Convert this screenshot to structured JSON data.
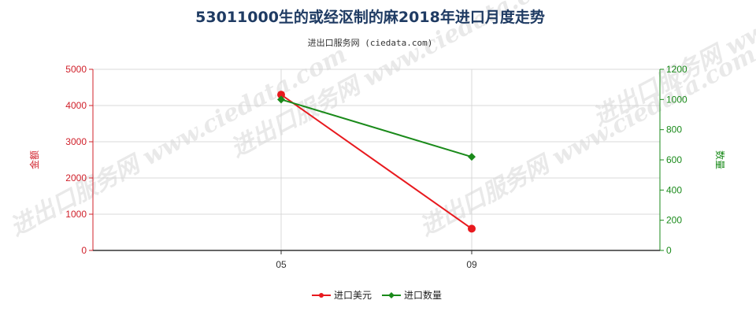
{
  "title": "53011000生的或经沤制的麻2018年进口月度走势",
  "subtitle": "进出口服务网 (ciedata.com)",
  "watermark_text": "进出口服务网 www.ciedata.com",
  "colors": {
    "left_axis": "#d0202a",
    "right_axis": "#1a8a1a",
    "grid": "#d8d8d8",
    "axis": "#333333"
  },
  "chart_data": {
    "type": "line",
    "categories": [
      "05",
      "09"
    ],
    "x_tick_labels": [
      "05",
      "09"
    ],
    "left_axis": {
      "label": "金额",
      "ylim": [
        0,
        5000
      ],
      "ticks": [
        0,
        1000,
        2000,
        3000,
        4000,
        5000
      ]
    },
    "right_axis": {
      "label": "数量",
      "ylim": [
        0,
        1200
      ],
      "ticks": [
        0,
        200,
        400,
        600,
        800,
        1000,
        1200
      ]
    },
    "series": [
      {
        "name": "进口美元",
        "axis": "left",
        "color": "#e8191e",
        "marker": "circle",
        "values": [
          4300,
          600
        ]
      },
      {
        "name": "进口数量",
        "axis": "right",
        "color": "#1a8a1a",
        "marker": "diamond",
        "values": [
          1000,
          620
        ]
      }
    ],
    "grid": true,
    "legend_position": "bottom-center"
  }
}
